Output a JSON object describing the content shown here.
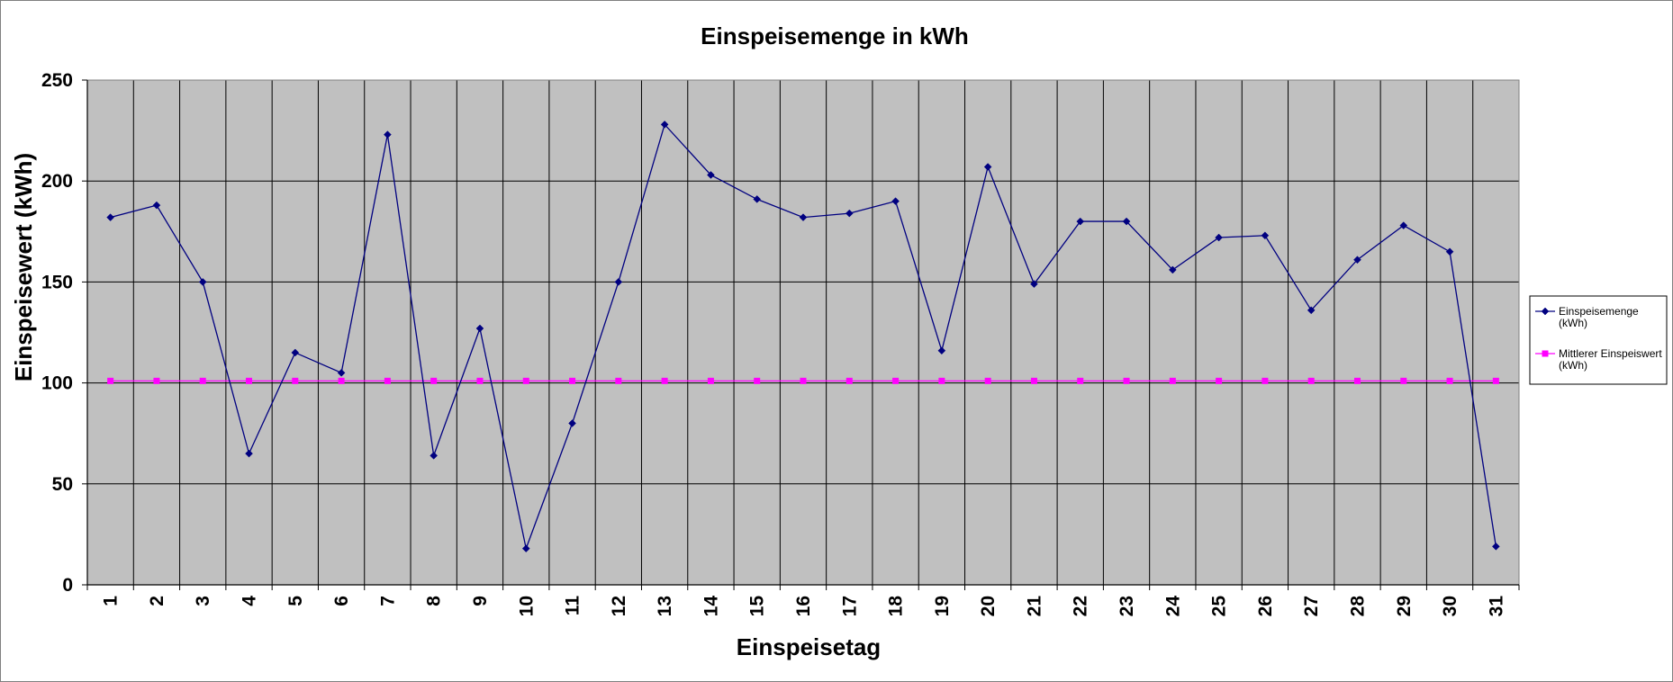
{
  "chart_data": {
    "type": "line",
    "title": "Einspeisemenge in kWh",
    "xlabel": "Einspeisetag",
    "ylabel": "Einspeisewert  (kWh)",
    "ylim": [
      0,
      250
    ],
    "yticks": [
      0,
      50,
      100,
      150,
      200,
      250
    ],
    "grid": true,
    "legend_position": "right",
    "plot_background": "#C0C0C0",
    "categories": [
      "1",
      "2",
      "3",
      "4",
      "5",
      "6",
      "7",
      "8",
      "9",
      "10",
      "11",
      "12",
      "13",
      "14",
      "15",
      "16",
      "17",
      "18",
      "19",
      "20",
      "21",
      "22",
      "23",
      "24",
      "25",
      "26",
      "27",
      "28",
      "29",
      "30",
      "31"
    ],
    "series": [
      {
        "name": "Einspeisemenge (kWh)",
        "legend_lines": [
          "Einspeisemenge",
          "(kWh)"
        ],
        "color": "#000080",
        "marker": "diamond",
        "values": [
          182,
          188,
          150,
          65,
          115,
          105,
          223,
          64,
          127,
          18,
          80,
          150,
          228,
          203,
          191,
          182,
          184,
          190,
          116,
          207,
          149,
          180,
          180,
          156,
          172,
          173,
          136,
          161,
          178,
          165,
          19
        ]
      },
      {
        "name": "Mittlerer Einspeiswert (kWh)",
        "legend_lines": [
          "Mittlerer Einspeiswert",
          "(kWh)"
        ],
        "color": "#FF00FF",
        "marker": "square",
        "values": [
          101,
          101,
          101,
          101,
          101,
          101,
          101,
          101,
          101,
          101,
          101,
          101,
          101,
          101,
          101,
          101,
          101,
          101,
          101,
          101,
          101,
          101,
          101,
          101,
          101,
          101,
          101,
          101,
          101,
          101,
          101
        ]
      }
    ]
  }
}
